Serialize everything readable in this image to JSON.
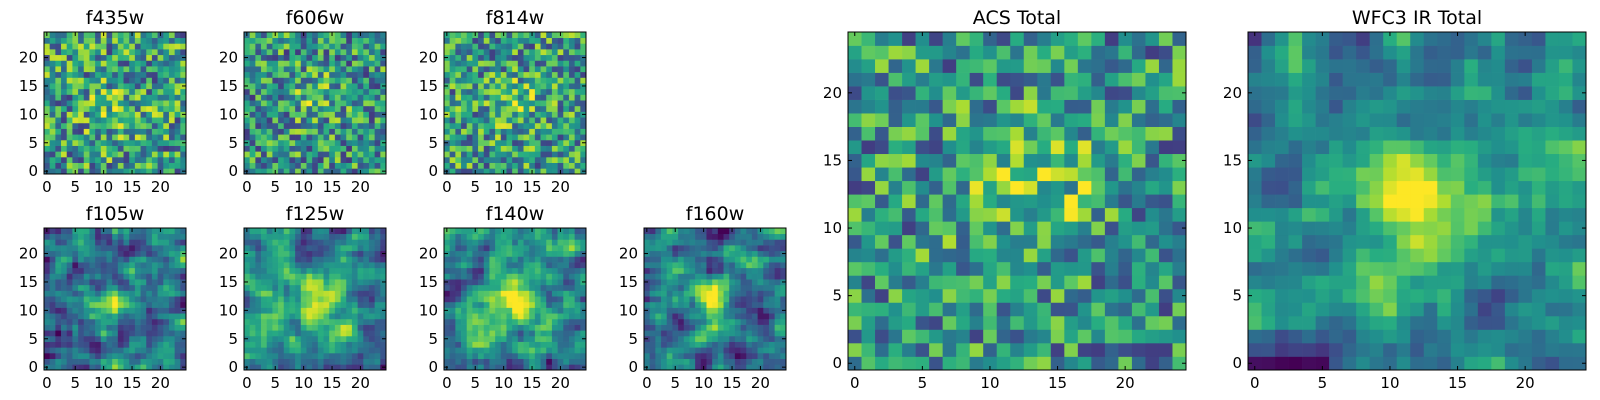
{
  "figure": {
    "description_colormap": "viridis"
  },
  "chart_data": [
    {
      "type": "heatmap",
      "title": "f435w",
      "pixels": 25,
      "xlim": [
        0,
        24
      ],
      "ylim": [
        0,
        24
      ],
      "xticks": [
        0,
        5,
        10,
        15,
        20
      ],
      "yticks": [
        0,
        5,
        10,
        15,
        20
      ],
      "peak": [
        12,
        11
      ],
      "blob": 0.15,
      "blob_w": 3.5,
      "smooth": 0,
      "noise": 0.38,
      "base": 0.55,
      "seed": 11
    },
    {
      "type": "heatmap",
      "title": "f606w",
      "pixels": 25,
      "xlim": [
        0,
        24
      ],
      "ylim": [
        0,
        24
      ],
      "xticks": [
        0,
        5,
        10,
        15,
        20
      ],
      "yticks": [
        0,
        5,
        10,
        15,
        20
      ],
      "peak": [
        12,
        13
      ],
      "blob": 0.2,
      "blob_w": 3,
      "smooth": 0,
      "noise": 0.36,
      "base": 0.52,
      "seed": 23
    },
    {
      "type": "heatmap",
      "title": "f814w",
      "pixels": 25,
      "xlim": [
        0,
        24
      ],
      "ylim": [
        0,
        24
      ],
      "xticks": [
        0,
        5,
        10,
        15,
        20
      ],
      "yticks": [
        0,
        5,
        10,
        15,
        20
      ],
      "peak": [
        12,
        12
      ],
      "blob": 0.2,
      "blob_w": 3,
      "smooth": 0,
      "noise": 0.36,
      "base": 0.55,
      "seed": 37
    },
    {
      "type": "heatmap",
      "title": "f105w",
      "pixels": 25,
      "xlim": [
        0,
        24
      ],
      "ylim": [
        0,
        24
      ],
      "xticks": [
        0,
        5,
        10,
        15,
        20
      ],
      "yticks": [
        0,
        5,
        10,
        15,
        20
      ],
      "peak": [
        12,
        11
      ],
      "blob": 0.45,
      "blob_w": 2.6,
      "smooth": 1,
      "noise": 0.45,
      "base": 0.42,
      "seed": 41
    },
    {
      "type": "heatmap",
      "title": "f125w",
      "pixels": 25,
      "xlim": [
        0,
        24
      ],
      "ylim": [
        0,
        24
      ],
      "xticks": [
        0,
        5,
        10,
        15,
        20
      ],
      "yticks": [
        0,
        5,
        10,
        15,
        20
      ],
      "peak": [
        13,
        11
      ],
      "blob": 0.45,
      "blob_w": 3,
      "smooth": 1,
      "noise": 0.42,
      "base": 0.45,
      "seed": 53
    },
    {
      "type": "heatmap",
      "title": "f140w",
      "pixels": 25,
      "xlim": [
        0,
        24
      ],
      "ylim": [
        0,
        24
      ],
      "xticks": [
        0,
        5,
        10,
        15,
        20
      ],
      "yticks": [
        0,
        5,
        10,
        15,
        20
      ],
      "peak": [
        11,
        12
      ],
      "blob": 0.5,
      "blob_w": 3.4,
      "smooth": 1,
      "noise": 0.42,
      "base": 0.45,
      "seed": 67
    },
    {
      "type": "heatmap",
      "title": "f160w",
      "pixels": 25,
      "xlim": [
        0,
        24
      ],
      "ylim": [
        0,
        24
      ],
      "xticks": [
        0,
        5,
        10,
        15,
        20
      ],
      "yticks": [
        0,
        5,
        10,
        15,
        20
      ],
      "peak": [
        12,
        12
      ],
      "blob": 0.55,
      "blob_w": 2.4,
      "smooth": 1,
      "noise": 0.42,
      "base": 0.4,
      "seed": 71
    },
    {
      "type": "heatmap",
      "title": "ACS Total",
      "pixels": 25,
      "xlim": [
        0,
        24
      ],
      "ylim": [
        0,
        24
      ],
      "xticks": [
        0,
        5,
        10,
        15,
        20
      ],
      "yticks": [
        0,
        5,
        10,
        15,
        20
      ],
      "peak": [
        13,
        13
      ],
      "blob": 0.3,
      "blob_w": 3.5,
      "smooth": 0,
      "noise": 0.34,
      "base": 0.52,
      "seed": 83
    },
    {
      "type": "heatmap",
      "title": "WFC3 IR Total",
      "pixels": 25,
      "xlim": [
        0,
        24
      ],
      "ylim": [
        0,
        24
      ],
      "xticks": [
        0,
        5,
        10,
        15,
        20
      ],
      "yticks": [
        0,
        5,
        10,
        15,
        20
      ],
      "peak": [
        12,
        12
      ],
      "blob": 0.55,
      "blob_w": 2.6,
      "smooth": 1,
      "noise": 0.42,
      "base": 0.4,
      "seed": 97
    }
  ]
}
